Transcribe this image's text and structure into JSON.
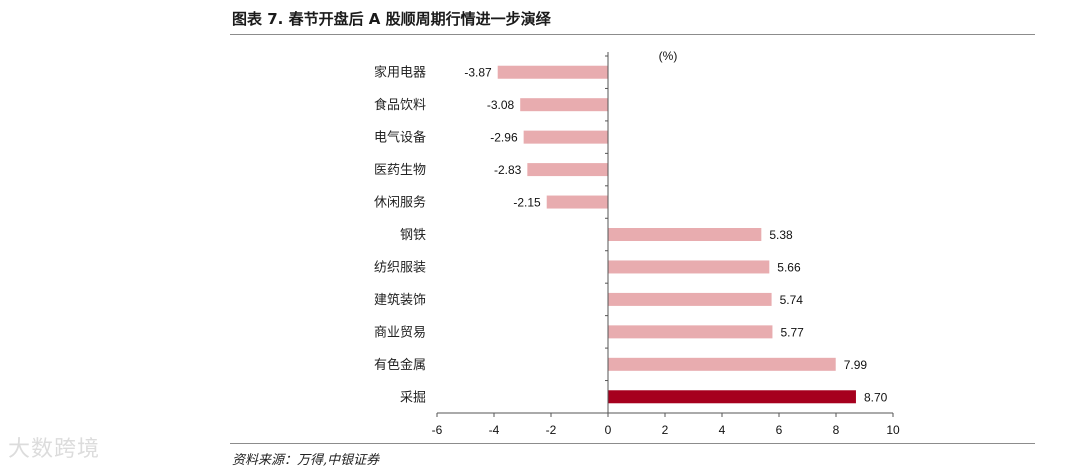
{
  "figure": {
    "title": "图表 7. 春节开盘后 A 股顺周期行情进一步演绎",
    "source": "资料来源：万得,中银证券",
    "watermark": "大数跨境"
  },
  "chart_data": {
    "type": "bar",
    "orientation": "horizontal",
    "unit_label": "(%)",
    "categories": [
      "家用电器",
      "食品饮料",
      "电气设备",
      "医药生物",
      "休闲服务",
      "钢铁",
      "纺织服装",
      "建筑装饰",
      "商业贸易",
      "有色金属",
      "采掘"
    ],
    "values": [
      -3.87,
      -3.08,
      -2.96,
      -2.83,
      -2.15,
      5.38,
      5.66,
      5.74,
      5.77,
      7.99,
      8.7
    ],
    "value_labels": [
      "-3.87",
      "-3.08",
      "-2.96",
      "-2.83",
      "-2.15",
      "5.38",
      "5.66",
      "5.74",
      "5.77",
      "7.99",
      "8.70"
    ],
    "xlim": [
      -6,
      10
    ],
    "x_ticks": [
      -6,
      -4,
      -2,
      0,
      2,
      4,
      6,
      8,
      10
    ],
    "grid": false,
    "colors": {
      "default": "#e8acaf",
      "highlight": "#a6001e"
    },
    "highlight_category": "采掘"
  }
}
